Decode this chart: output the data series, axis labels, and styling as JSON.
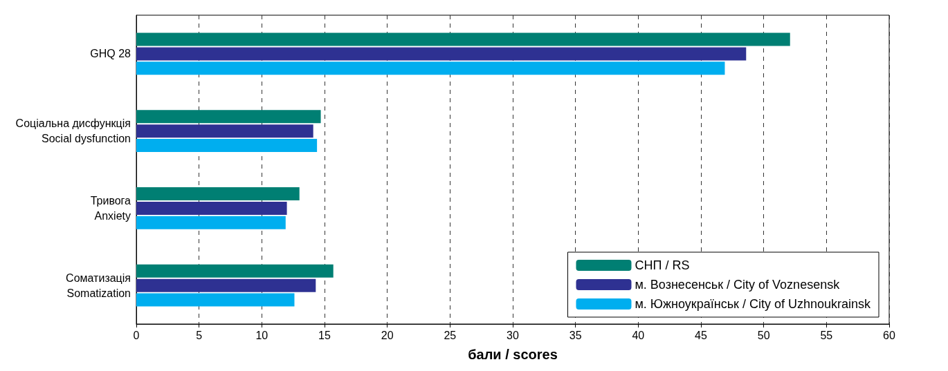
{
  "chart_data": {
    "type": "bar",
    "orientation": "horizontal",
    "xlabel": "бали / scores",
    "categories": [
      "GHQ 28",
      "Соціальна дисфункція\nSocial dysfunction",
      "Тривога\nAnxiety",
      "Соматизація\nSomatization"
    ],
    "series": [
      {
        "name": "СНП / RS",
        "color": "#007f73",
        "values": [
          52.1,
          14.7,
          13.0,
          15.7
        ]
      },
      {
        "name": "м. Вознесенськ / City of Voznesensk",
        "color": "#2e3192",
        "values": [
          48.6,
          14.1,
          12.0,
          14.3
        ]
      },
      {
        "name": "м. Южноукраїнськ / City of Uzhnoukrainsk",
        "color": "#00aeef",
        "values": [
          46.9,
          14.4,
          11.9,
          12.6
        ]
      }
    ],
    "xlim": [
      0,
      60
    ],
    "xticks": [
      0,
      5,
      10,
      15,
      20,
      25,
      30,
      35,
      40,
      45,
      50,
      55,
      60
    ],
    "grid": "x",
    "legend": "bottom right"
  }
}
